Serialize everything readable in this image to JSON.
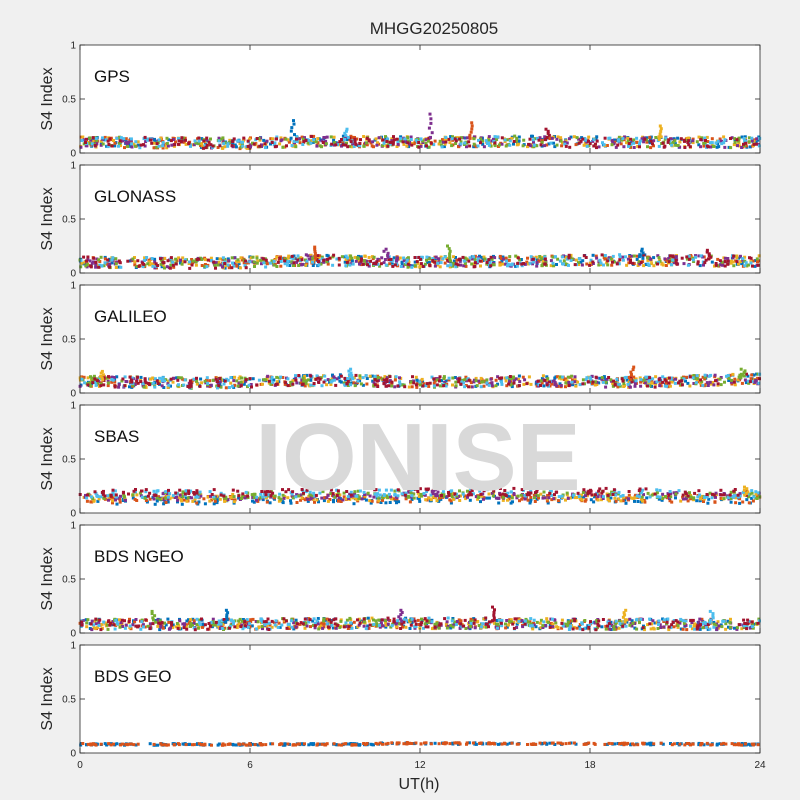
{
  "chart_data": {
    "type": "scatter",
    "title": "MHGG20250805",
    "xlabel": "UT(h)",
    "ylabel": "S4 Index",
    "xlim": [
      0,
      24
    ],
    "ylim": [
      0,
      1
    ],
    "xticks": [
      "0",
      "6",
      "12",
      "18",
      "24"
    ],
    "yticks": [
      "0",
      "0.5",
      "1"
    ],
    "watermark": "IONISE",
    "series_colors": [
      "#0072BD",
      "#D95319",
      "#EDB120",
      "#7E2F8E",
      "#77AC30",
      "#4DBEEE",
      "#A2142F"
    ],
    "panels": [
      {
        "name": "GPS",
        "profile": [
          {
            "x": 0,
            "y": 0.1
          },
          {
            "x": 6,
            "y": 0.09
          },
          {
            "x": 8,
            "y": 0.11
          },
          {
            "x": 12,
            "y": 0.1
          },
          {
            "x": 15,
            "y": 0.11
          },
          {
            "x": 18,
            "y": 0.1
          },
          {
            "x": 24,
            "y": 0.1
          }
        ],
        "spikes": [
          {
            "x": 7.5,
            "y": 0.3
          },
          {
            "x": 12.4,
            "y": 0.36
          },
          {
            "x": 16.5,
            "y": 0.22
          },
          {
            "x": 20.5,
            "y": 0.25
          },
          {
            "x": 9.4,
            "y": 0.22
          },
          {
            "x": 13.8,
            "y": 0.28
          }
        ]
      },
      {
        "name": "GLONASS",
        "profile": [
          {
            "x": 0,
            "y": 0.1
          },
          {
            "x": 5,
            "y": 0.09
          },
          {
            "x": 8,
            "y": 0.12
          },
          {
            "x": 12,
            "y": 0.1
          },
          {
            "x": 15,
            "y": 0.11
          },
          {
            "x": 19,
            "y": 0.12
          },
          {
            "x": 24,
            "y": 0.11
          }
        ],
        "spikes": [
          {
            "x": 8.3,
            "y": 0.24
          },
          {
            "x": 13.0,
            "y": 0.25
          },
          {
            "x": 19.8,
            "y": 0.22
          },
          {
            "x": 10.8,
            "y": 0.22
          },
          {
            "x": 22.2,
            "y": 0.21
          }
        ]
      },
      {
        "name": "GALILEO",
        "profile": [
          {
            "x": 0,
            "y": 0.11
          },
          {
            "x": 4,
            "y": 0.09
          },
          {
            "x": 9,
            "y": 0.12
          },
          {
            "x": 12,
            "y": 0.1
          },
          {
            "x": 16,
            "y": 0.11
          },
          {
            "x": 20,
            "y": 0.1
          },
          {
            "x": 24,
            "y": 0.13
          }
        ],
        "spikes": [
          {
            "x": 0.8,
            "y": 0.2
          },
          {
            "x": 9.5,
            "y": 0.22
          },
          {
            "x": 19.5,
            "y": 0.24
          },
          {
            "x": 23.4,
            "y": 0.22
          }
        ]
      },
      {
        "name": "SBAS",
        "profile": [
          {
            "x": 0,
            "y": 0.15
          },
          {
            "x": 6,
            "y": 0.15
          },
          {
            "x": 12,
            "y": 0.16
          },
          {
            "x": 18,
            "y": 0.16
          },
          {
            "x": 24,
            "y": 0.15
          }
        ],
        "spikes": [
          {
            "x": 12.5,
            "y": 0.22
          },
          {
            "x": 18.0,
            "y": 0.21
          },
          {
            "x": 23.5,
            "y": 0.24
          }
        ]
      },
      {
        "name": "BDS NGEO",
        "profile": [
          {
            "x": 0,
            "y": 0.08
          },
          {
            "x": 6,
            "y": 0.08
          },
          {
            "x": 10,
            "y": 0.09
          },
          {
            "x": 14,
            "y": 0.09
          },
          {
            "x": 18,
            "y": 0.08
          },
          {
            "x": 24,
            "y": 0.08
          }
        ],
        "spikes": [
          {
            "x": 2.6,
            "y": 0.2
          },
          {
            "x": 5.2,
            "y": 0.21
          },
          {
            "x": 11.3,
            "y": 0.21
          },
          {
            "x": 14.6,
            "y": 0.24
          },
          {
            "x": 19.2,
            "y": 0.21
          },
          {
            "x": 22.3,
            "y": 0.2
          }
        ]
      },
      {
        "name": "BDS GEO",
        "profile": [
          {
            "x": 0,
            "y": 0.08
          },
          {
            "x": 10,
            "y": 0.08
          },
          {
            "x": 11,
            "y": 0.09
          },
          {
            "x": 24,
            "y": 0.08
          }
        ],
        "spikes": []
      }
    ]
  }
}
